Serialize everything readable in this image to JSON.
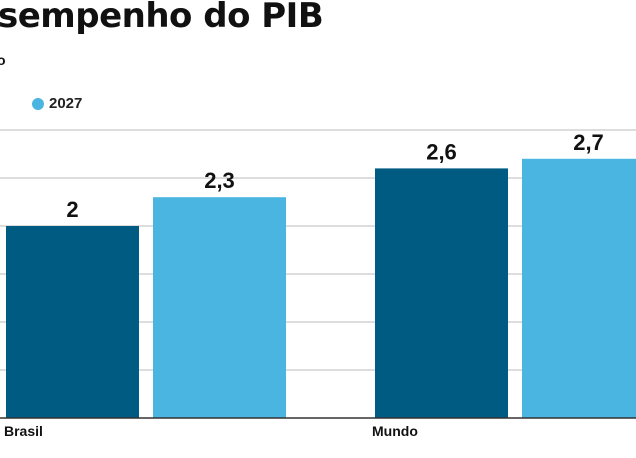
{
  "header": {
    "title": "sempenho do PIB",
    "subtitle_fragment": "o"
  },
  "colors": {
    "series_a": "#005b82",
    "series_b": "#4ab5e0",
    "grid": "#bbbbbb",
    "axis": "#333333"
  },
  "chart_data": {
    "type": "bar",
    "title": "sempenho do PIB",
    "categories": [
      "Brasil",
      "Mundo"
    ],
    "series": [
      {
        "values": [
          2,
          2.6
        ]
      },
      {
        "name": "2027",
        "values": [
          2.3,
          2.7
        ]
      }
    ],
    "value_labels": [
      [
        "2",
        "2,6"
      ],
      [
        "2,3",
        "2,7"
      ]
    ],
    "ylim": [
      0,
      3
    ],
    "grid": true,
    "legend_position": "top-left",
    "xlabel": "",
    "ylabel": ""
  }
}
